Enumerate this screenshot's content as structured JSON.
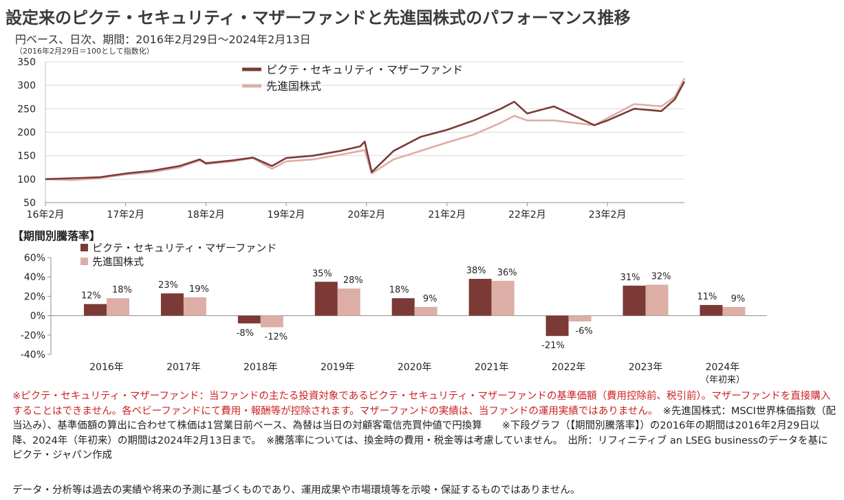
{
  "title": "設定来のピクテ・セキュリティ・マザーファンドと先進国株式のパフォーマンス推移",
  "subtitle": "円ベース、日次、期間：2016年2月29日～2024年2月13日",
  "note": "（2016年2月29日＝100として指数化）",
  "section_title": "【期間別騰落率】",
  "colors": {
    "fund": "#7b3a36",
    "index": "#dcaea6"
  },
  "chart_data": [
    {
      "type": "line",
      "xlabel": "",
      "ylabel": "",
      "ylim": [
        50,
        350
      ],
      "yticks": [
        50,
        100,
        150,
        200,
        250,
        300,
        350
      ],
      "x_tick_labels": [
        "16年2月",
        "17年2月",
        "18年2月",
        "19年2月",
        "20年2月",
        "21年2月",
        "22年2月",
        "23年2月"
      ],
      "xlim": [
        "2016-02-29",
        "2024-02-13"
      ],
      "legend_position": "top-center",
      "grid": true,
      "series": [
        {
          "name": "ピクテ・セキュリティ・マザーファンド",
          "color": "#7b3a36",
          "x": [
            "2016-02-29",
            "2016-06-30",
            "2016-10-31",
            "2017-02-28",
            "2017-06-30",
            "2017-10-31",
            "2018-01-31",
            "2018-02-28",
            "2018-06-30",
            "2018-09-30",
            "2018-12-25",
            "2019-02-28",
            "2019-06-30",
            "2019-10-31",
            "2020-01-31",
            "2020-02-20",
            "2020-03-23",
            "2020-06-30",
            "2020-10-31",
            "2021-02-28",
            "2021-06-30",
            "2021-10-31",
            "2021-12-31",
            "2022-02-28",
            "2022-06-30",
            "2022-09-30",
            "2022-12-31",
            "2023-02-28",
            "2023-06-30",
            "2023-10-31",
            "2023-12-31",
            "2024-02-13"
          ],
          "y": [
            100,
            102,
            104,
            112,
            118,
            128,
            142,
            134,
            140,
            146,
            128,
            145,
            150,
            160,
            170,
            180,
            115,
            160,
            190,
            205,
            225,
            250,
            265,
            240,
            255,
            235,
            215,
            225,
            250,
            245,
            270,
            308
          ]
        },
        {
          "name": "先進国株式",
          "color": "#dcaea6",
          "x": [
            "2016-02-29",
            "2016-06-30",
            "2016-10-31",
            "2017-02-28",
            "2017-06-30",
            "2017-10-31",
            "2018-01-31",
            "2018-02-28",
            "2018-06-30",
            "2018-09-30",
            "2018-12-25",
            "2019-02-28",
            "2019-06-30",
            "2019-10-31",
            "2020-01-31",
            "2020-02-20",
            "2020-03-23",
            "2020-06-30",
            "2020-10-31",
            "2021-02-28",
            "2021-06-30",
            "2021-10-31",
            "2021-12-31",
            "2022-02-28",
            "2022-06-30",
            "2022-09-30",
            "2022-12-31",
            "2023-02-28",
            "2023-06-30",
            "2023-10-31",
            "2023-12-31",
            "2024-02-13"
          ],
          "y": [
            100,
            98,
            102,
            110,
            115,
            125,
            140,
            132,
            138,
            145,
            122,
            138,
            142,
            152,
            160,
            162,
            112,
            142,
            160,
            178,
            195,
            220,
            235,
            225,
            225,
            220,
            215,
            230,
            260,
            255,
            275,
            315
          ]
        }
      ]
    },
    {
      "type": "bar",
      "ylim": [
        -40,
        60
      ],
      "yticks": [
        "-40%",
        "-20%",
        "0%",
        "20%",
        "40%",
        "60%"
      ],
      "legend_position": "top-left",
      "categories": [
        "2016年",
        "2017年",
        "2018年",
        "2019年",
        "2020年",
        "2021年",
        "2022年",
        "2023年",
        "2024年"
      ],
      "category_sublabel": {
        "2024年": "（年初来）"
      },
      "series": [
        {
          "name": "ピクテ・セキュリティ・マザーファンド",
          "color": "#7b3a36",
          "values": [
            12,
            23,
            -8,
            35,
            18,
            38,
            -21,
            31,
            11
          ],
          "labels": [
            "12%",
            "23%",
            "-8%",
            "35%",
            "18%",
            "38%",
            "-21%",
            "31%",
            "11%"
          ]
        },
        {
          "name": "先進国株式",
          "color": "#dcaea6",
          "values": [
            18,
            19,
            -12,
            28,
            9,
            36,
            -6,
            32,
            9
          ],
          "labels": [
            "18%",
            "19%",
            "-12%",
            "28%",
            "9%",
            "36%",
            "-6%",
            "32%",
            "9%"
          ]
        }
      ]
    }
  ],
  "footnotes": {
    "red": "※ピクテ・セキュリティ・マザーファンド：当ファンドの主たる投資対象であるピクテ・セキュリティ・マザーファンドの基準価額（費用控除前、税引前）。マザーファンドを直接購入することはできません。各ベビーファンドにて費用・報酬等が控除されます。マザーファンドの実績は、当ファンドの運用実績ではありません。",
    "black": "　※先進国株式：MSCI世界株価指数（配当込み）、基準価額の算出に合わせて株価は1営業日前ベース、為替は当日の対顧客電信売買仲値で円換算　　※下段グラフ（【期間別騰落率】）の2016年の期間は2016年2月29日以降、2024年（年初来）の期間は2024年2月13日まで。　※騰落率については、換金時の費用・税金等は考慮していません。　出所：リフィニティブ an LSEG businessのデータを基にピクテ・ジャパン作成",
    "disclaimer": "データ・分析等は過去の実績や将来の予測に基づくものであり、運用成果や市場環境等を示唆・保証するものではありません。"
  }
}
